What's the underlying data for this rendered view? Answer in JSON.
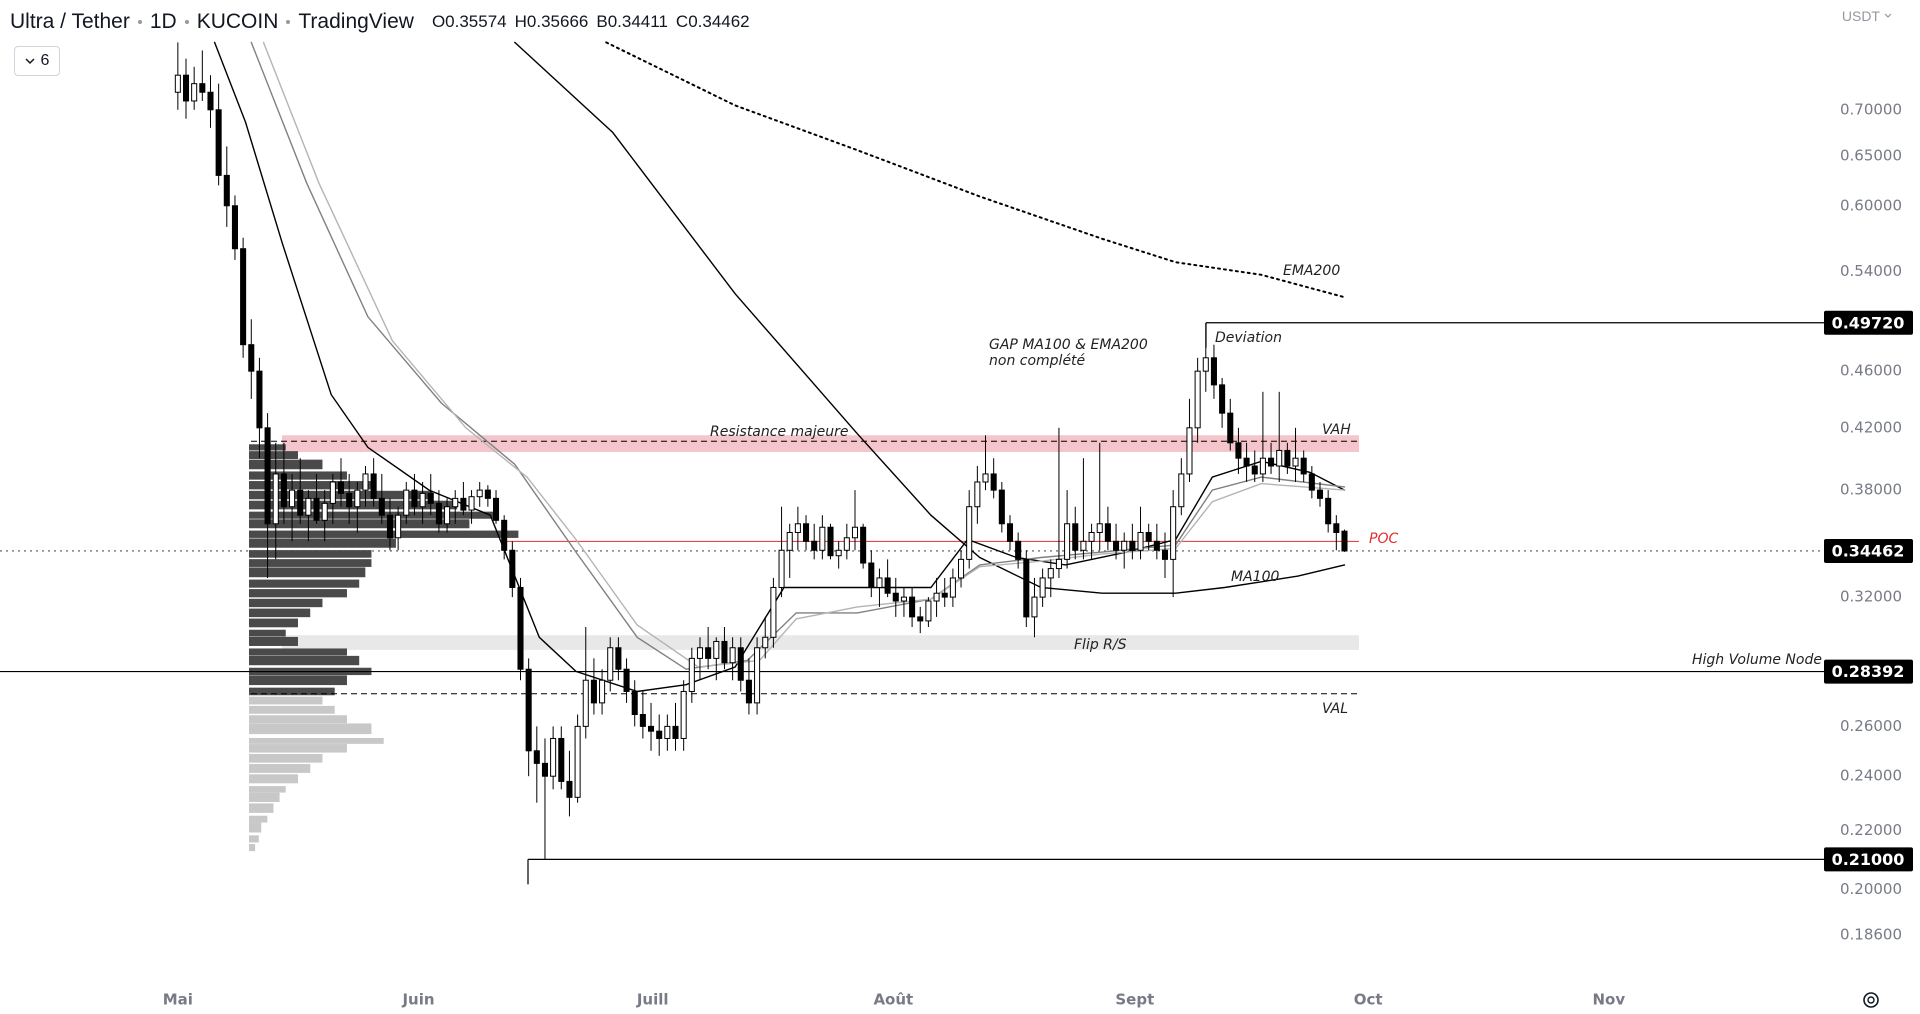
{
  "chart_data": {
    "type": "candlestick",
    "header": {
      "symbol": "Ultra / Tether",
      "interval": "1D",
      "exchange": "KUCOIN",
      "source": "TradingView"
    },
    "ohlc_legend": [
      {
        "key": "O",
        "value": 0.35574
      },
      {
        "key": "H",
        "value": 0.35666
      },
      {
        "key": "B",
        "value": 0.34411
      },
      {
        "key": "C",
        "value": 0.34462
      }
    ],
    "indicators_count": 6,
    "currency": "USDT",
    "log_scale": true,
    "grid": false,
    "ylim": [
      0.173,
      0.835
    ],
    "yticks": [
      {
        "value": 0.186,
        "label": "0.18600"
      },
      {
        "value": 0.2,
        "label": "0.20000"
      },
      {
        "value": 0.22,
        "label": "0.22000"
      },
      {
        "value": 0.24,
        "label": "0.24000"
      },
      {
        "value": 0.26,
        "label": "0.26000"
      },
      {
        "value": 0.32,
        "label": "0.32000"
      },
      {
        "value": 0.38,
        "label": "0.38000"
      },
      {
        "value": 0.42,
        "label": "0.42000"
      },
      {
        "value": 0.46,
        "label": "0.46000"
      },
      {
        "value": 0.54,
        "label": "0.54000"
      },
      {
        "value": 0.6,
        "label": "0.60000"
      },
      {
        "value": 0.65,
        "label": "0.65000"
      },
      {
        "value": 0.7,
        "label": "0.70000"
      }
    ],
    "xlim": [
      -21.8,
      201.9
    ],
    "xticks": [
      {
        "value": 0,
        "label": "Mai"
      },
      {
        "value": 29.5,
        "label": "Juin"
      },
      {
        "value": 58.2,
        "label": "Juill"
      },
      {
        "value": 87.7,
        "label": "Août"
      },
      {
        "value": 117.3,
        "label": "Sept"
      },
      {
        "value": 145.9,
        "label": "Oct"
      },
      {
        "value": 175.4,
        "label": "Nov"
      }
    ],
    "up_color": "#ffffff",
    "down_color": "#000000",
    "wick_color": "#000000",
    "candles": [
      [
        0.72,
        0.78,
        0.7,
        0.74
      ],
      [
        0.74,
        0.76,
        0.69,
        0.71
      ],
      [
        0.71,
        0.75,
        0.7,
        0.73
      ],
      [
        0.73,
        0.77,
        0.71,
        0.72
      ],
      [
        0.72,
        0.74,
        0.68,
        0.7
      ],
      [
        0.7,
        0.73,
        0.62,
        0.63
      ],
      [
        0.63,
        0.66,
        0.58,
        0.6
      ],
      [
        0.6,
        0.61,
        0.55,
        0.56
      ],
      [
        0.56,
        0.57,
        0.47,
        0.48
      ],
      [
        0.48,
        0.5,
        0.44,
        0.46
      ],
      [
        0.46,
        0.47,
        0.4,
        0.42
      ],
      [
        0.42,
        0.43,
        0.33,
        0.36
      ],
      [
        0.36,
        0.41,
        0.34,
        0.39
      ],
      [
        0.39,
        0.41,
        0.36,
        0.37
      ],
      [
        0.37,
        0.39,
        0.35,
        0.38
      ],
      [
        0.38,
        0.4,
        0.36,
        0.365
      ],
      [
        0.365,
        0.38,
        0.35,
        0.375
      ],
      [
        0.375,
        0.39,
        0.36,
        0.362
      ],
      [
        0.362,
        0.38,
        0.35,
        0.372
      ],
      [
        0.372,
        0.39,
        0.36,
        0.385
      ],
      [
        0.385,
        0.4,
        0.37,
        0.378
      ],
      [
        0.378,
        0.39,
        0.36,
        0.37
      ],
      [
        0.37,
        0.385,
        0.355,
        0.38
      ],
      [
        0.38,
        0.395,
        0.37,
        0.39
      ],
      [
        0.39,
        0.4,
        0.37,
        0.375
      ],
      [
        0.375,
        0.39,
        0.36,
        0.365
      ],
      [
        0.365,
        0.375,
        0.345,
        0.352
      ],
      [
        0.352,
        0.37,
        0.345,
        0.365
      ],
      [
        0.365,
        0.385,
        0.36,
        0.38
      ],
      [
        0.38,
        0.39,
        0.365,
        0.37
      ],
      [
        0.37,
        0.385,
        0.36,
        0.378
      ],
      [
        0.378,
        0.39,
        0.365,
        0.372
      ],
      [
        0.372,
        0.38,
        0.355,
        0.36
      ],
      [
        0.36,
        0.375,
        0.355,
        0.37
      ],
      [
        0.37,
        0.38,
        0.36,
        0.375
      ],
      [
        0.375,
        0.385,
        0.365,
        0.368
      ],
      [
        0.368,
        0.38,
        0.36,
        0.376
      ],
      [
        0.376,
        0.385,
        0.37,
        0.38
      ],
      [
        0.38,
        0.383,
        0.37,
        0.375
      ],
      [
        0.375,
        0.38,
        0.36,
        0.362
      ],
      [
        0.362,
        0.365,
        0.34,
        0.345
      ],
      [
        0.345,
        0.35,
        0.32,
        0.325
      ],
      [
        0.325,
        0.33,
        0.28,
        0.285
      ],
      [
        0.285,
        0.29,
        0.24,
        0.25
      ],
      [
        0.25,
        0.26,
        0.23,
        0.245
      ],
      [
        0.245,
        0.255,
        0.21,
        0.24
      ],
      [
        0.24,
        0.26,
        0.235,
        0.255
      ],
      [
        0.255,
        0.26,
        0.235,
        0.238
      ],
      [
        0.238,
        0.25,
        0.225,
        0.232
      ],
      [
        0.232,
        0.265,
        0.23,
        0.26
      ],
      [
        0.26,
        0.305,
        0.255,
        0.28
      ],
      [
        0.28,
        0.29,
        0.265,
        0.27
      ],
      [
        0.27,
        0.285,
        0.265,
        0.28
      ],
      [
        0.28,
        0.3,
        0.275,
        0.295
      ],
      [
        0.295,
        0.3,
        0.28,
        0.285
      ],
      [
        0.285,
        0.29,
        0.27,
        0.275
      ],
      [
        0.275,
        0.28,
        0.26,
        0.265
      ],
      [
        0.265,
        0.275,
        0.255,
        0.26
      ],
      [
        0.26,
        0.27,
        0.25,
        0.258
      ],
      [
        0.258,
        0.265,
        0.248,
        0.255
      ],
      [
        0.255,
        0.265,
        0.25,
        0.26
      ],
      [
        0.26,
        0.27,
        0.25,
        0.255
      ],
      [
        0.255,
        0.28,
        0.25,
        0.275
      ],
      [
        0.275,
        0.295,
        0.27,
        0.29
      ],
      [
        0.29,
        0.3,
        0.28,
        0.295
      ],
      [
        0.295,
        0.305,
        0.285,
        0.29
      ],
      [
        0.29,
        0.3,
        0.28,
        0.298
      ],
      [
        0.298,
        0.305,
        0.285,
        0.288
      ],
      [
        0.288,
        0.3,
        0.28,
        0.295
      ],
      [
        0.295,
        0.3,
        0.275,
        0.28
      ],
      [
        0.28,
        0.29,
        0.265,
        0.27
      ],
      [
        0.27,
        0.3,
        0.265,
        0.295
      ],
      [
        0.295,
        0.31,
        0.29,
        0.3
      ],
      [
        0.3,
        0.33,
        0.295,
        0.325
      ],
      [
        0.325,
        0.37,
        0.32,
        0.345
      ],
      [
        0.345,
        0.36,
        0.33,
        0.355
      ],
      [
        0.355,
        0.37,
        0.345,
        0.36
      ],
      [
        0.36,
        0.365,
        0.345,
        0.35
      ],
      [
        0.35,
        0.36,
        0.34,
        0.345
      ],
      [
        0.345,
        0.365,
        0.34,
        0.358
      ],
      [
        0.358,
        0.36,
        0.34,
        0.342
      ],
      [
        0.342,
        0.35,
        0.335,
        0.345
      ],
      [
        0.345,
        0.36,
        0.34,
        0.352
      ],
      [
        0.352,
        0.38,
        0.345,
        0.358
      ],
      [
        0.358,
        0.36,
        0.335,
        0.338
      ],
      [
        0.338,
        0.345,
        0.32,
        0.325
      ],
      [
        0.325,
        0.335,
        0.315,
        0.33
      ],
      [
        0.33,
        0.34,
        0.32,
        0.322
      ],
      [
        0.322,
        0.33,
        0.31,
        0.318
      ],
      [
        0.318,
        0.325,
        0.31,
        0.32
      ],
      [
        0.32,
        0.325,
        0.305,
        0.31
      ],
      [
        0.31,
        0.315,
        0.302,
        0.308
      ],
      [
        0.308,
        0.32,
        0.305,
        0.318
      ],
      [
        0.318,
        0.33,
        0.31,
        0.322
      ],
      [
        0.322,
        0.33,
        0.315,
        0.32
      ],
      [
        0.32,
        0.335,
        0.315,
        0.33
      ],
      [
        0.33,
        0.345,
        0.325,
        0.34
      ],
      [
        0.34,
        0.38,
        0.335,
        0.37
      ],
      [
        0.37,
        0.395,
        0.36,
        0.385
      ],
      [
        0.385,
        0.415,
        0.38,
        0.39
      ],
      [
        0.39,
        0.4,
        0.375,
        0.38
      ],
      [
        0.38,
        0.385,
        0.355,
        0.36
      ],
      [
        0.36,
        0.365,
        0.345,
        0.35
      ],
      [
        0.35,
        0.355,
        0.335,
        0.34
      ],
      [
        0.34,
        0.345,
        0.305,
        0.31
      ],
      [
        0.31,
        0.33,
        0.3,
        0.32
      ],
      [
        0.32,
        0.335,
        0.315,
        0.33
      ],
      [
        0.33,
        0.34,
        0.32,
        0.335
      ],
      [
        0.335,
        0.42,
        0.33,
        0.34
      ],
      [
        0.34,
        0.38,
        0.335,
        0.36
      ],
      [
        0.36,
        0.37,
        0.34,
        0.345
      ],
      [
        0.345,
        0.4,
        0.34,
        0.35
      ],
      [
        0.35,
        0.36,
        0.34,
        0.355
      ],
      [
        0.355,
        0.41,
        0.345,
        0.36
      ],
      [
        0.36,
        0.37,
        0.345,
        0.35
      ],
      [
        0.35,
        0.36,
        0.34,
        0.345
      ],
      [
        0.345,
        0.355,
        0.335,
        0.35
      ],
      [
        0.35,
        0.36,
        0.34,
        0.345
      ],
      [
        0.345,
        0.37,
        0.34,
        0.355
      ],
      [
        0.355,
        0.36,
        0.345,
        0.35
      ],
      [
        0.35,
        0.36,
        0.34,
        0.345
      ],
      [
        0.345,
        0.355,
        0.33,
        0.34
      ],
      [
        0.34,
        0.38,
        0.32,
        0.37
      ],
      [
        0.37,
        0.4,
        0.365,
        0.39
      ],
      [
        0.39,
        0.44,
        0.385,
        0.42
      ],
      [
        0.42,
        0.47,
        0.41,
        0.46
      ],
      [
        0.46,
        0.4972,
        0.445,
        0.47
      ],
      [
        0.47,
        0.48,
        0.44,
        0.45
      ],
      [
        0.45,
        0.455,
        0.42,
        0.43
      ],
      [
        0.43,
        0.44,
        0.405,
        0.41
      ],
      [
        0.41,
        0.42,
        0.39,
        0.4
      ],
      [
        0.4,
        0.41,
        0.385,
        0.395
      ],
      [
        0.395,
        0.405,
        0.385,
        0.39
      ],
      [
        0.39,
        0.445,
        0.385,
        0.4
      ],
      [
        0.4,
        0.41,
        0.39,
        0.395
      ],
      [
        0.395,
        0.445,
        0.385,
        0.405
      ],
      [
        0.405,
        0.41,
        0.39,
        0.395
      ],
      [
        0.395,
        0.42,
        0.385,
        0.4
      ],
      [
        0.4,
        0.405,
        0.385,
        0.39
      ],
      [
        0.39,
        0.395,
        0.375,
        0.38
      ],
      [
        0.38,
        0.385,
        0.37,
        0.375
      ],
      [
        0.375,
        0.38,
        0.355,
        0.36
      ],
      [
        0.36,
        0.365,
        0.345,
        0.355
      ],
      [
        0.35574,
        0.35666,
        0.34411,
        0.34462
      ]
    ],
    "overlays": [
      {
        "name": "EMA200",
        "color": "#000000",
        "dash": "dotted",
        "x": [
          52.5,
          68.3,
          83.3,
          98.3,
          113.3,
          122.3,
          132.8,
          143
        ],
        "values": [
          0.78,
          0.705,
          0.656,
          0.609,
          0.569,
          0.548,
          0.537,
          0.518
        ]
      },
      {
        "name": "MA100",
        "color": "#000000",
        "dash": "solid",
        "x": [
          41.3,
          53.3,
          68.3,
          83.3,
          92.3,
          98.3,
          105.8,
          113.3,
          122.3,
          128.3,
          137.3,
          143
        ],
        "values": [
          0.78,
          0.675,
          0.521,
          0.416,
          0.365,
          0.341,
          0.325,
          0.322,
          0.322,
          0.325,
          0.331,
          0.337
        ]
      },
      {
        "color": "#000000",
        "dash": "solid",
        "x": [
          4.5,
          8.3,
          12.8,
          18.8,
          23.3,
          30.8,
          38.3,
          44.3,
          48.8,
          56.3,
          62.3,
          68.3,
          74.3,
          83.3,
          92.3,
          96.8,
          102.8,
          108.8,
          116.3,
          122.3,
          126.8,
          132.8,
          138.8,
          143
        ],
        "values": [
          0.78,
          0.686,
          0.565,
          0.443,
          0.407,
          0.38,
          0.365,
          0.3,
          0.284,
          0.275,
          0.278,
          0.286,
          0.325,
          0.325,
          0.325,
          0.351,
          0.341,
          0.337,
          0.344,
          0.351,
          0.388,
          0.398,
          0.391,
          0.38
        ]
      },
      {
        "color": "#808080",
        "dash": "solid",
        "x": [
          9.0,
          15.8,
          23.3,
          32.3,
          41.3,
          48.8,
          56.3,
          62.3,
          69.8,
          75.8,
          83.3,
          92.3,
          98.3,
          105.8,
          113.3,
          122.3,
          126.8,
          132.8,
          143
        ],
        "values": [
          0.78,
          0.622,
          0.502,
          0.437,
          0.396,
          0.344,
          0.3,
          0.285,
          0.289,
          0.312,
          0.312,
          0.319,
          0.337,
          0.341,
          0.344,
          0.348,
          0.38,
          0.388,
          0.382
        ]
      },
      {
        "color": "#b4b4b4",
        "dash": "solid",
        "x": [
          10.5,
          17.3,
          26.3,
          35.3,
          42.8,
          48.8,
          56.3,
          63.8,
          71.3,
          75.8,
          83.3,
          92.3,
          98.3,
          105.8,
          113.3,
          122.3,
          126.8,
          132.8,
          143
        ],
        "values": [
          0.78,
          0.622,
          0.483,
          0.42,
          0.388,
          0.351,
          0.306,
          0.286,
          0.289,
          0.309,
          0.315,
          0.319,
          0.336,
          0.339,
          0.343,
          0.346,
          0.373,
          0.384,
          0.38
        ]
      }
    ],
    "volume_profile": {
      "inside_color": "#4a4a4a",
      "outside_color": "#c8c8c8",
      "prices": [
        0.407,
        0.402,
        0.396,
        0.389,
        0.383,
        0.377,
        0.371,
        0.365,
        0.36,
        0.354,
        0.349,
        0.343,
        0.338,
        0.333,
        0.327,
        0.322,
        0.317,
        0.312,
        0.307,
        0.302,
        0.298,
        0.293,
        0.289,
        0.284,
        0.28,
        0.275,
        0.271,
        0.267,
        0.263,
        0.259,
        0.254,
        0.251,
        0.247,
        0.243,
        0.239,
        0.235,
        0.232,
        0.228,
        0.224,
        0.221,
        0.217,
        0.214
      ],
      "volumes": [
        30,
        40,
        60,
        80,
        100,
        150,
        170,
        200,
        180,
        220,
        120,
        100,
        100,
        95,
        90,
        80,
        60,
        50,
        40,
        30,
        40,
        80,
        90,
        100,
        80,
        70,
        60,
        70,
        80,
        100,
        110,
        80,
        60,
        50,
        40,
        30,
        25,
        20,
        15,
        10,
        8,
        5
      ]
    },
    "profile_lines": [
      {
        "name": "VAH",
        "value": 0.411,
        "color": "#000000",
        "dash": "dashed"
      },
      {
        "name": "POC",
        "value": 0.35,
        "color": "#e03030",
        "dash": "solid"
      },
      {
        "name": "VAL",
        "value": 0.274,
        "color": "#000000",
        "dash": "dashed"
      }
    ],
    "zones": [
      {
        "name": "Resistance majeure",
        "range": [
          0.404,
          0.415
        ],
        "color": "#f4c5ca"
      },
      {
        "name": "Flip R/S",
        "range": [
          0.294,
          0.301
        ],
        "color": "#e8e8e8"
      }
    ],
    "levels": [
      {
        "value": 0.4972,
        "label": "0.49720",
        "dash": "solid"
      },
      {
        "value": 0.34462,
        "label": "0.34462",
        "dash": "dotted"
      },
      {
        "value": 0.28392,
        "label": "0.28392",
        "dash": "solid",
        "name": "High Volume Node"
      },
      {
        "value": 0.21,
        "label": "0.21000",
        "dash": "solid"
      }
    ],
    "annotations": [
      "GAP MA100 & EMA200",
      "non complété",
      "Deviation"
    ]
  }
}
